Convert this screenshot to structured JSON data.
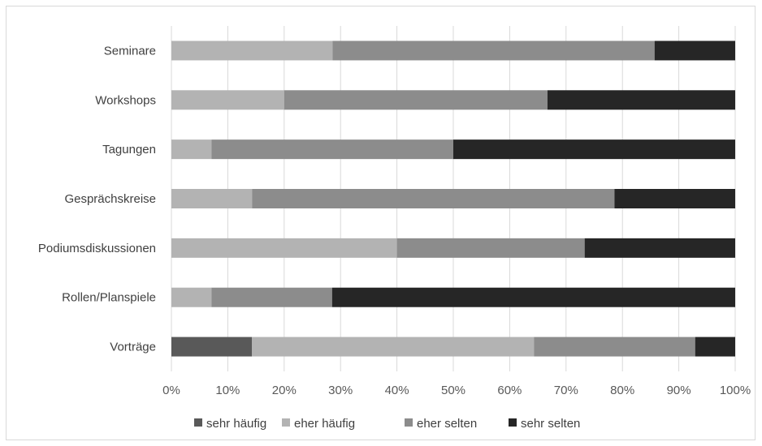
{
  "chart_data": {
    "type": "bar",
    "orientation": "horizontal",
    "stacked": "percent",
    "categories": [
      "Seminare",
      "Workshops",
      "Tagungen",
      "Gesprächskreise",
      "Podiumsdiskussionen",
      "Rollen/Planspiele",
      "Vorträge"
    ],
    "series": [
      {
        "name": "sehr häufig",
        "color": "#595959",
        "values": [
          0,
          0,
          0,
          0,
          0,
          0,
          14.3
        ]
      },
      {
        "name": "eher häufig",
        "color": "#b3b3b3",
        "values": [
          28.6,
          20.0,
          7.1,
          14.3,
          40.0,
          7.1,
          50.0
        ]
      },
      {
        "name": "eher selten",
        "color": "#8c8c8c",
        "values": [
          57.1,
          46.7,
          42.9,
          64.3,
          33.3,
          21.4,
          28.6
        ]
      },
      {
        "name": "sehr selten",
        "color": "#262626",
        "values": [
          14.3,
          33.3,
          50.0,
          21.4,
          26.7,
          71.5,
          7.1
        ]
      }
    ],
    "xlim": [
      0,
      100
    ],
    "x_ticks": [
      "0%",
      "10%",
      "20%",
      "30%",
      "40%",
      "50%",
      "60%",
      "70%",
      "80%",
      "90%",
      "100%"
    ],
    "grid": "vertical",
    "legend_position": "bottom"
  }
}
